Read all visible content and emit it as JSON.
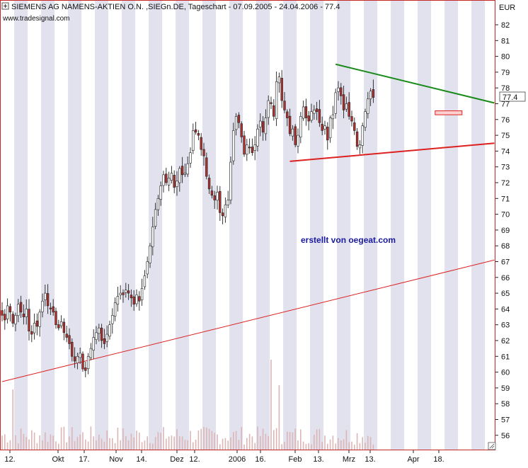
{
  "header": {
    "title": "SIEMENS AG NAMENS-AKTIEN O.N. ,SIEGn.DE, Tageschart - 07.09.2005 - 24.04.2006 - 77.4",
    "source": "www.tradesignal.com",
    "annotation": "erstellt von oegeat.com"
  },
  "colors": {
    "band": "#e2e2ee",
    "frame": "#c62828",
    "candle_up": "#ffffff",
    "candle_down": "#b03030",
    "trend_green": "#1a8a1a",
    "trend_red": "#dd2020",
    "annotation": "#1a1a9e",
    "volume": "#dcb6b6"
  },
  "chart_data": {
    "type": "candlestick",
    "title": "SIEMENS AG NAMENS-AKTIEN O.N. ,SIEGn.DE, Tageschart - 07.09.2005 - 24.04.2006 - 77.4",
    "currency": "EUR",
    "last_price": "77.4",
    "y_ticks": [
      "82",
      "81",
      "80",
      "79",
      "78",
      "77",
      "76",
      "75",
      "74",
      "73",
      "72",
      "71",
      "70",
      "69",
      "68",
      "67",
      "66",
      "65",
      "64",
      "63",
      "62",
      "61",
      "60",
      "59",
      "58",
      "57",
      "56"
    ],
    "ylim": [
      55.2,
      83.5
    ],
    "x_ticks": [
      "12.",
      "Okt",
      "17.",
      "Nov",
      "14.",
      "Dez",
      "12.",
      "2006",
      "16.",
      "Feb",
      "13.",
      "Mrz",
      "13.",
      "Apr",
      "18."
    ],
    "closes": [
      63.6,
      63.3,
      64.2,
      63.8,
      63.1,
      63.6,
      64.3,
      63.8,
      63.5,
      64.0,
      62.6,
      62.4,
      63.1,
      62.9,
      63.8,
      64.5,
      65.0,
      64.2,
      64.0,
      63.8,
      63.0,
      62.8,
      63.2,
      62.5,
      62.2,
      61.8,
      61.0,
      60.7,
      61.0,
      61.2,
      60.2,
      60.1,
      61.0,
      61.5,
      62.2,
      62.5,
      62.8,
      62.0,
      61.8,
      62.4,
      63.0,
      63.6,
      64.4,
      64.8,
      65.0,
      64.9,
      65.2,
      65.0,
      64.7,
      64.3,
      64.9,
      64.5,
      65.3,
      66.1,
      67.0,
      68.0,
      69.2,
      70.3,
      71.0,
      71.8,
      72.5,
      72.0,
      72.3,
      72.6,
      71.7,
      72.1,
      72.9,
      72.5,
      72.6,
      73.2,
      73.9,
      75.3,
      75.2,
      75.0,
      74.1,
      73.7,
      72.4,
      71.6,
      71.2,
      70.9,
      71.4,
      70.1,
      69.9,
      70.6,
      70.9,
      73.3,
      75.3,
      76.2,
      75.8,
      74.9,
      73.8,
      74.4,
      74.2,
      73.9,
      74.4,
      75.4,
      75.9,
      75.2,
      76.1,
      77.2,
      77.0,
      76.2,
      78.4,
      78.7,
      77.2,
      76.6,
      76.1,
      75.1,
      75.4,
      74.4,
      75.0,
      76.2,
      76.8,
      76.1,
      75.9,
      76.5,
      76.6,
      76.5,
      75.8,
      75.3,
      75.6,
      74.7,
      76.1,
      76.3,
      77.7,
      78.0,
      77.5,
      76.6,
      77.0,
      76.2,
      75.9,
      75.3,
      74.3,
      74.4,
      75.6,
      76.5,
      77.3,
      77.8,
      77.4
    ],
    "trendlines": [
      {
        "color": "green",
        "from": {
          "bar": 124,
          "price": 79.5
        },
        "to": {
          "bar": 183,
          "price": 77.05
        }
      },
      {
        "color": "red",
        "from": {
          "bar": 107,
          "price": 73.35
        },
        "to": {
          "bar": 183,
          "price": 74.5
        }
      },
      {
        "color": "red",
        "from": {
          "bar": 0,
          "price": 59.4
        },
        "to": {
          "bar": 183,
          "price": 67.1
        }
      }
    ],
    "target_box": {
      "from_bar": 161,
      "to_bar": 171,
      "price_low": 76.3,
      "price_high": 76.55
    },
    "grid": false,
    "legend": "none",
    "volume_shown": true
  }
}
